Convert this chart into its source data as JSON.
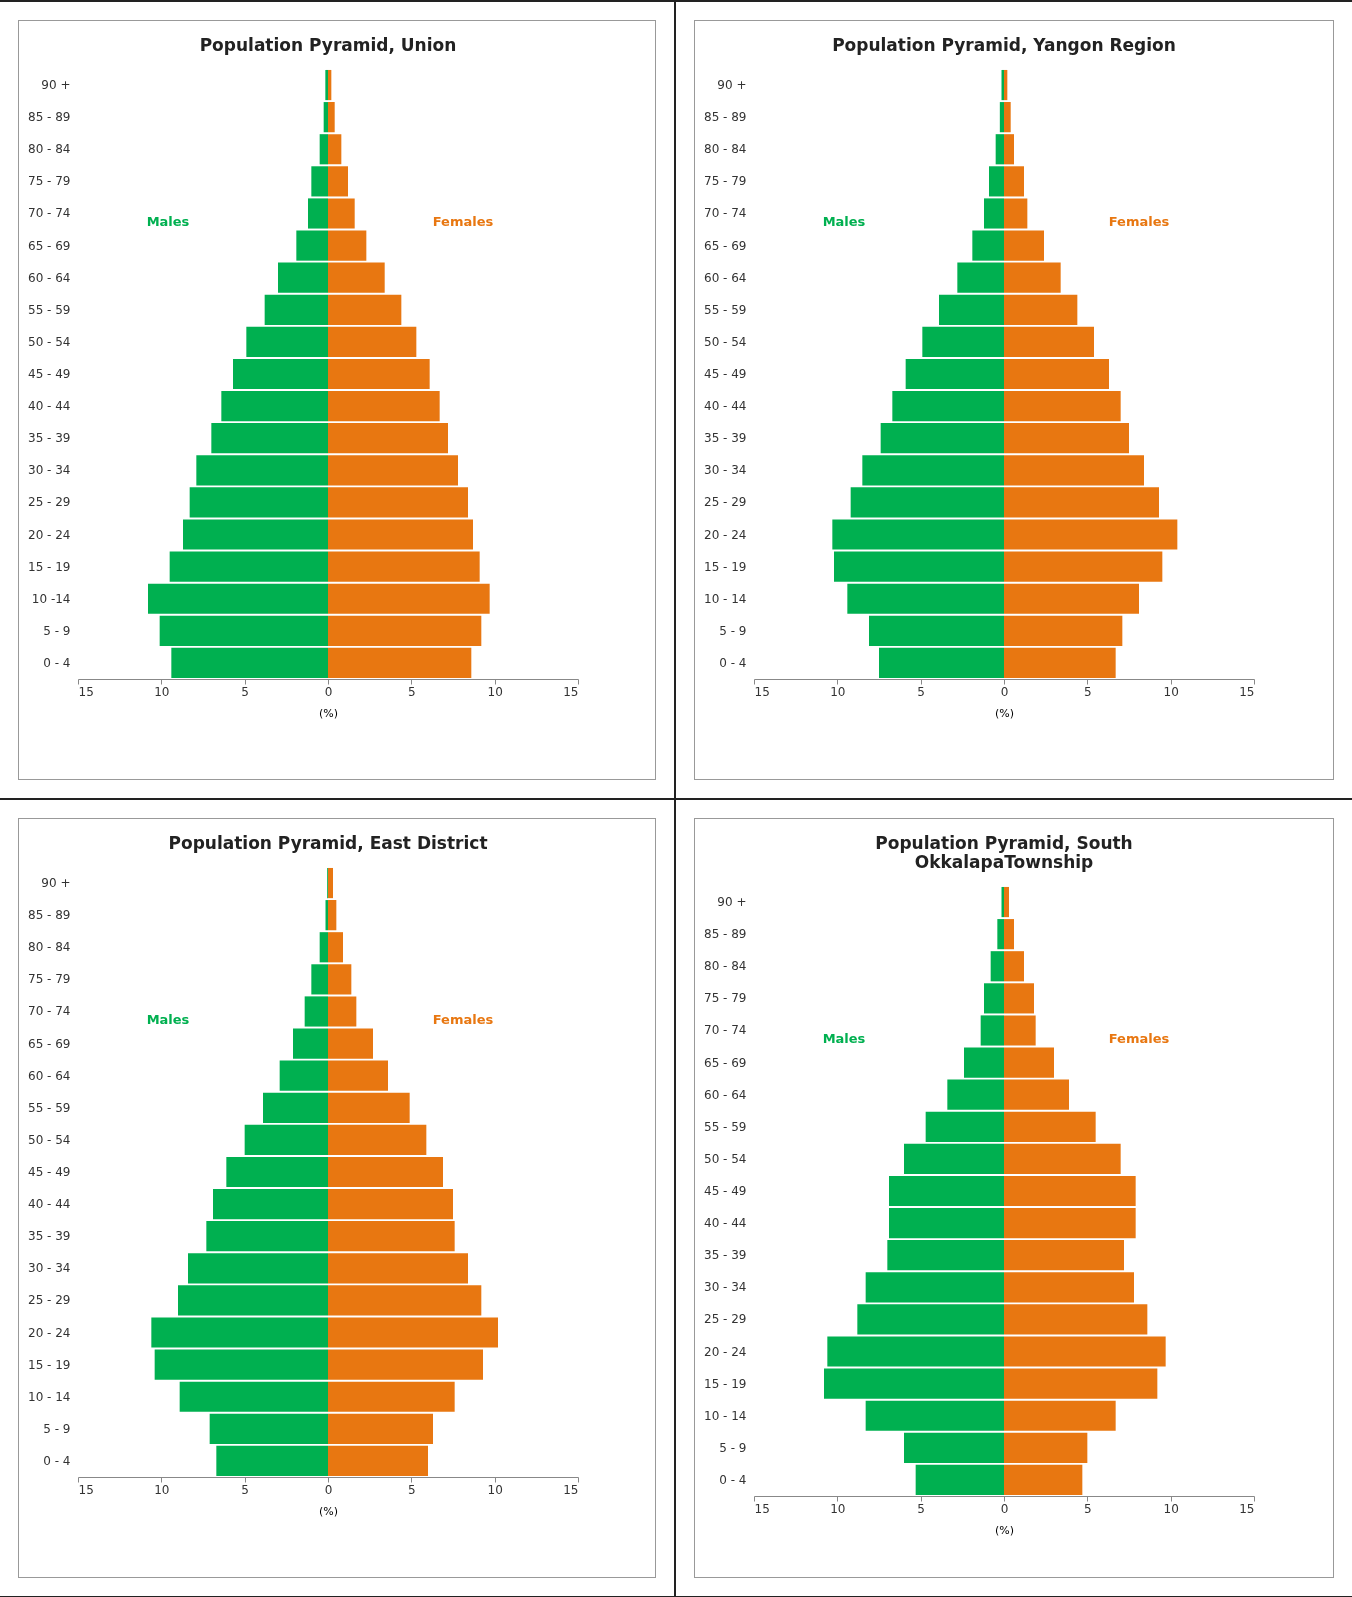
{
  "chart_data": [
    {
      "type": "bar",
      "orientation": "horizontal",
      "stacked": true,
      "title": "Population Pyramid, Union",
      "xlabel": "(%)",
      "categories": [
        "90 +",
        "85 - 89",
        "80 - 84",
        "75 - 79",
        "70 - 74",
        "65 - 69",
        "60 - 64",
        "55 - 59",
        "50 - 54",
        "45 - 49",
        "40 - 44",
        "35 - 39",
        "30 - 34",
        "25 - 29",
        "20 - 24",
        "15 - 19",
        "10 -14",
        "5 - 9",
        "0 - 4"
      ],
      "xlim": [
        -15,
        15
      ],
      "xticks": [
        {
          "value": -15,
          "label": "15"
        },
        {
          "value": -10,
          "label": "10"
        },
        {
          "value": -5,
          "label": "5"
        },
        0,
        5,
        10,
        15
      ],
      "series": [
        {
          "name": "Males",
          "color": "#00b050",
          "values": [
            -0.16,
            -0.26,
            -0.5,
            -1.0,
            -1.2,
            -1.9,
            -3.0,
            -3.8,
            -4.9,
            -5.7,
            -6.4,
            -7.0,
            -7.9,
            -8.3,
            -8.7,
            -9.5,
            -10.8,
            -10.1,
            -9.4
          ]
        },
        {
          "name": "Females",
          "color": "#e87711",
          "values": [
            0.2,
            0.4,
            0.8,
            1.2,
            1.6,
            2.3,
            3.4,
            4.4,
            5.3,
            6.1,
            6.7,
            7.2,
            7.8,
            8.4,
            8.7,
            9.1,
            9.7,
            9.2,
            8.6
          ]
        }
      ]
    },
    {
      "type": "bar",
      "orientation": "horizontal",
      "stacked": true,
      "title": "Population Pyramid, Yangon Region",
      "xlabel": "(%)",
      "categories": [
        "90 +",
        "85 - 89",
        "80 - 84",
        "75 - 79",
        "70 - 74",
        "65 - 69",
        "60 - 64",
        "55 - 59",
        "50 - 54",
        "45 - 49",
        "40 - 44",
        "35 - 39",
        "30 - 34",
        "25 - 29",
        "20 - 24",
        "15 - 19",
        "10 - 14",
        "5 - 9",
        "0 - 4"
      ],
      "xlim": [
        -15,
        15
      ],
      "xticks": [
        {
          "value": -15,
          "label": "15"
        },
        {
          "value": -10,
          "label": "10"
        },
        {
          "value": -5,
          "label": "5"
        },
        0,
        5,
        10,
        15
      ],
      "series": [
        {
          "name": "Males",
          "color": "#00b050",
          "values": [
            -0.15,
            -0.25,
            -0.5,
            -0.9,
            -1.2,
            -1.9,
            -2.8,
            -3.9,
            -4.9,
            -5.9,
            -6.7,
            -7.4,
            -8.5,
            -9.2,
            -10.3,
            -10.2,
            -9.4,
            -8.1,
            -7.5
          ]
        },
        {
          "name": "Females",
          "color": "#e87711",
          "values": [
            0.2,
            0.4,
            0.6,
            1.2,
            1.4,
            2.4,
            3.4,
            4.4,
            5.4,
            6.3,
            7.0,
            7.5,
            8.4,
            9.3,
            10.4,
            9.5,
            8.1,
            7.1,
            6.7
          ]
        }
      ]
    },
    {
      "type": "bar",
      "orientation": "horizontal",
      "stacked": true,
      "title": "Population Pyramid, East District",
      "xlabel": "(%)",
      "categories": [
        "90 +",
        "85 - 89",
        "80 - 84",
        "75 - 79",
        "70 - 74",
        "65 - 69",
        "60 - 64",
        "55 - 59",
        "50 - 54",
        "45 - 49",
        "40 - 44",
        "35 - 39",
        "30 - 34",
        "25 - 29",
        "20 - 24",
        "15 - 19",
        "10 - 14",
        "5 - 9",
        "0 - 4"
      ],
      "xlim": [
        -15,
        15
      ],
      "xticks": [
        {
          "value": -15,
          "label": "15"
        },
        {
          "value": -10,
          "label": "10"
        },
        {
          "value": -5,
          "label": "5"
        },
        0,
        5,
        10,
        15
      ],
      "series": [
        {
          "name": "Males",
          "color": "#00b050",
          "values": [
            -0.05,
            -0.15,
            -0.5,
            -1.0,
            -1.4,
            -2.1,
            -2.9,
            -3.9,
            -5.0,
            -6.1,
            -6.9,
            -7.3,
            -8.4,
            -9.0,
            -10.6,
            -10.4,
            -8.9,
            -7.1,
            -6.7
          ]
        },
        {
          "name": "Females",
          "color": "#e87711",
          "values": [
            0.3,
            0.5,
            0.9,
            1.4,
            1.7,
            2.7,
            3.6,
            4.9,
            5.9,
            6.9,
            7.5,
            7.6,
            8.4,
            9.2,
            10.2,
            9.3,
            7.6,
            6.3,
            6.0
          ]
        }
      ]
    },
    {
      "type": "bar",
      "orientation": "horizontal",
      "stacked": true,
      "title": "Population Pyramid, South OkkalapaTownship",
      "xlabel": "(%)",
      "categories": [
        "90 +",
        "85 - 89",
        "80 - 84",
        "75 - 79",
        "70 - 74",
        "65 - 69",
        "60 - 64",
        "55 - 59",
        "50 - 54",
        "45 - 49",
        "40 - 44",
        "35 - 39",
        "30 - 34",
        "25 - 29",
        "20 - 24",
        "15 - 19",
        "10 - 14",
        "5 - 9",
        "0 - 4"
      ],
      "xlim": [
        -15,
        15
      ],
      "xticks": [
        {
          "value": -15,
          "label": "15"
        },
        {
          "value": -10,
          "label": "10"
        },
        {
          "value": -5,
          "label": "5"
        },
        0,
        5,
        10,
        15
      ],
      "series": [
        {
          "name": "Males",
          "color": "#00b050",
          "values": [
            -0.15,
            -0.4,
            -0.8,
            -1.2,
            -1.4,
            -2.4,
            -3.4,
            -4.7,
            -6.0,
            -6.9,
            -6.9,
            -7.0,
            -8.3,
            -8.8,
            -10.6,
            -10.8,
            -8.3,
            -6.0,
            -5.3
          ]
        },
        {
          "name": "Females",
          "color": "#e87711",
          "values": [
            0.3,
            0.6,
            1.2,
            1.8,
            1.9,
            3.0,
            3.9,
            5.5,
            7.0,
            7.9,
            7.9,
            7.2,
            7.8,
            8.6,
            9.7,
            9.2,
            6.7,
            5.0,
            4.7
          ]
        }
      ]
    }
  ]
}
